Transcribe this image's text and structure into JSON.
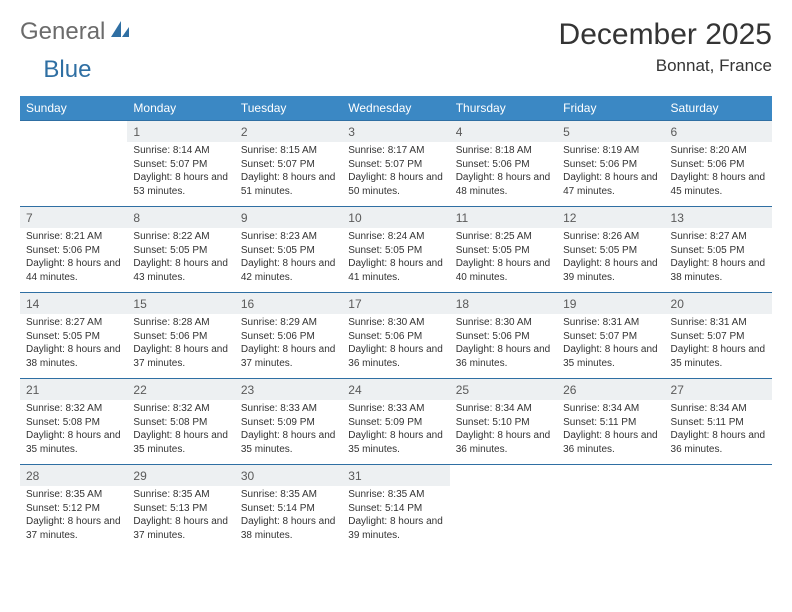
{
  "brand": {
    "name1": "General",
    "name2": "Blue"
  },
  "title": "December 2025",
  "location": "Bonnat, France",
  "colors": {
    "header_bg": "#3b88c4",
    "header_text": "#ffffff",
    "daynum_bg": "#edf0f2",
    "rule": "#2f6fa3",
    "text": "#333333",
    "brand_gray": "#6b6b6b",
    "brand_blue": "#2f6fa3"
  },
  "day_headers": [
    "Sunday",
    "Monday",
    "Tuesday",
    "Wednesday",
    "Thursday",
    "Friday",
    "Saturday"
  ],
  "weeks": [
    {
      "nums": [
        "",
        "1",
        "2",
        "3",
        "4",
        "5",
        "6"
      ],
      "cells": [
        "",
        "Sunrise: 8:14 AM\nSunset: 5:07 PM\nDaylight: 8 hours and 53 minutes.",
        "Sunrise: 8:15 AM\nSunset: 5:07 PM\nDaylight: 8 hours and 51 minutes.",
        "Sunrise: 8:17 AM\nSunset: 5:07 PM\nDaylight: 8 hours and 50 minutes.",
        "Sunrise: 8:18 AM\nSunset: 5:06 PM\nDaylight: 8 hours and 48 minutes.",
        "Sunrise: 8:19 AM\nSunset: 5:06 PM\nDaylight: 8 hours and 47 minutes.",
        "Sunrise: 8:20 AM\nSunset: 5:06 PM\nDaylight: 8 hours and 45 minutes."
      ]
    },
    {
      "nums": [
        "7",
        "8",
        "9",
        "10",
        "11",
        "12",
        "13"
      ],
      "cells": [
        "Sunrise: 8:21 AM\nSunset: 5:06 PM\nDaylight: 8 hours and 44 minutes.",
        "Sunrise: 8:22 AM\nSunset: 5:05 PM\nDaylight: 8 hours and 43 minutes.",
        "Sunrise: 8:23 AM\nSunset: 5:05 PM\nDaylight: 8 hours and 42 minutes.",
        "Sunrise: 8:24 AM\nSunset: 5:05 PM\nDaylight: 8 hours and 41 minutes.",
        "Sunrise: 8:25 AM\nSunset: 5:05 PM\nDaylight: 8 hours and 40 minutes.",
        "Sunrise: 8:26 AM\nSunset: 5:05 PM\nDaylight: 8 hours and 39 minutes.",
        "Sunrise: 8:27 AM\nSunset: 5:05 PM\nDaylight: 8 hours and 38 minutes."
      ]
    },
    {
      "nums": [
        "14",
        "15",
        "16",
        "17",
        "18",
        "19",
        "20"
      ],
      "cells": [
        "Sunrise: 8:27 AM\nSunset: 5:05 PM\nDaylight: 8 hours and 38 minutes.",
        "Sunrise: 8:28 AM\nSunset: 5:06 PM\nDaylight: 8 hours and 37 minutes.",
        "Sunrise: 8:29 AM\nSunset: 5:06 PM\nDaylight: 8 hours and 37 minutes.",
        "Sunrise: 8:30 AM\nSunset: 5:06 PM\nDaylight: 8 hours and 36 minutes.",
        "Sunrise: 8:30 AM\nSunset: 5:06 PM\nDaylight: 8 hours and 36 minutes.",
        "Sunrise: 8:31 AM\nSunset: 5:07 PM\nDaylight: 8 hours and 35 minutes.",
        "Sunrise: 8:31 AM\nSunset: 5:07 PM\nDaylight: 8 hours and 35 minutes."
      ]
    },
    {
      "nums": [
        "21",
        "22",
        "23",
        "24",
        "25",
        "26",
        "27"
      ],
      "cells": [
        "Sunrise: 8:32 AM\nSunset: 5:08 PM\nDaylight: 8 hours and 35 minutes.",
        "Sunrise: 8:32 AM\nSunset: 5:08 PM\nDaylight: 8 hours and 35 minutes.",
        "Sunrise: 8:33 AM\nSunset: 5:09 PM\nDaylight: 8 hours and 35 minutes.",
        "Sunrise: 8:33 AM\nSunset: 5:09 PM\nDaylight: 8 hours and 35 minutes.",
        "Sunrise: 8:34 AM\nSunset: 5:10 PM\nDaylight: 8 hours and 36 minutes.",
        "Sunrise: 8:34 AM\nSunset: 5:11 PM\nDaylight: 8 hours and 36 minutes.",
        "Sunrise: 8:34 AM\nSunset: 5:11 PM\nDaylight: 8 hours and 36 minutes."
      ]
    },
    {
      "nums": [
        "28",
        "29",
        "30",
        "31",
        "",
        "",
        ""
      ],
      "cells": [
        "Sunrise: 8:35 AM\nSunset: 5:12 PM\nDaylight: 8 hours and 37 minutes.",
        "Sunrise: 8:35 AM\nSunset: 5:13 PM\nDaylight: 8 hours and 37 minutes.",
        "Sunrise: 8:35 AM\nSunset: 5:14 PM\nDaylight: 8 hours and 38 minutes.",
        "Sunrise: 8:35 AM\nSunset: 5:14 PM\nDaylight: 8 hours and 39 minutes.",
        "",
        "",
        ""
      ]
    }
  ]
}
